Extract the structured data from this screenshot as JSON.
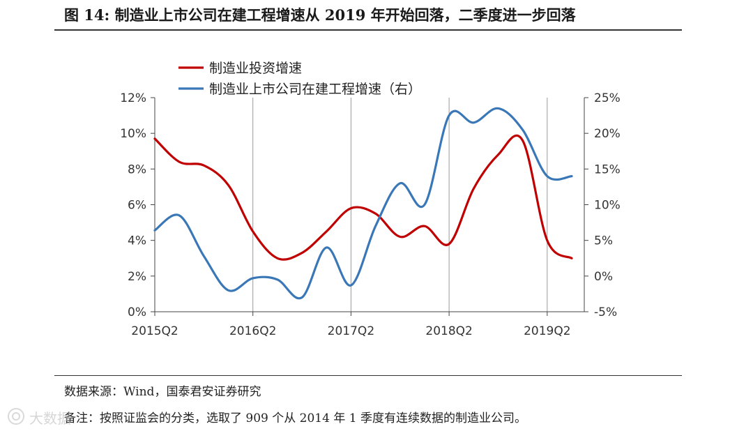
{
  "figure": {
    "title": "图 14:  制造业上市公司在建工程增速从 2019 年开始回落，二季度进一步回落",
    "source": "数据来源：Wind，国泰君安证券研究",
    "remark": "备注：按照证监会的分类，选取了 909 个从 2014 年 1 季度有连续数据的制造业公司。",
    "watermark": "大数据"
  },
  "chart_data": {
    "type": "line",
    "x_ticks": [
      "2015Q2",
      "2016Q2",
      "2017Q2",
      "2018Q2",
      "2019Q2"
    ],
    "x_range": [
      "2015Q2",
      "2019Q3"
    ],
    "y_left": {
      "ticks": [
        "0%",
        "2%",
        "4%",
        "6%",
        "8%",
        "10%",
        "12%"
      ],
      "range": [
        0,
        12
      ],
      "unit": "%"
    },
    "y_right": {
      "ticks": [
        "-5%",
        "0%",
        "5%",
        "10%",
        "15%",
        "20%",
        "25%"
      ],
      "range": [
        -5,
        25
      ],
      "unit": "%"
    },
    "vertical_gridlines": [
      "2016Q2",
      "2017Q2",
      "2018Q2",
      "2019Q2"
    ],
    "legend_position": "top-left",
    "series": [
      {
        "name": "制造业投资增速",
        "axis": "left",
        "color": "#c00000",
        "x": [
          "2015Q2",
          "2015Q3",
          "2015Q4",
          "2016Q1",
          "2016Q2",
          "2016Q3",
          "2016Q4",
          "2017Q1",
          "2017Q2",
          "2017Q3",
          "2017Q4",
          "2018Q1",
          "2018Q2",
          "2018Q3",
          "2018Q4",
          "2019Q1",
          "2019Q2",
          "2019Q3"
        ],
        "values": [
          9.7,
          8.4,
          8.2,
          7.1,
          4.5,
          3.0,
          3.3,
          4.5,
          5.8,
          5.5,
          4.2,
          4.8,
          3.8,
          6.9,
          8.8,
          9.6,
          4.0,
          3.0
        ]
      },
      {
        "name": "制造业上市公司在建工程增速（右）",
        "axis": "right",
        "color": "#3a77b7",
        "x": [
          "2015Q2",
          "2015Q3",
          "2015Q4",
          "2016Q1",
          "2016Q2",
          "2016Q3",
          "2016Q4",
          "2017Q1",
          "2017Q2",
          "2017Q3",
          "2017Q4",
          "2018Q1",
          "2018Q2",
          "2018Q3",
          "2018Q4",
          "2019Q1",
          "2019Q2",
          "2019Q3"
        ],
        "values": [
          6.4,
          8.5,
          2.8,
          -2.0,
          -0.3,
          -0.5,
          -3.0,
          4.0,
          -1.3,
          7.0,
          13.0,
          10.0,
          22.5,
          21.5,
          23.5,
          20.5,
          14.0,
          14.0
        ]
      }
    ]
  }
}
